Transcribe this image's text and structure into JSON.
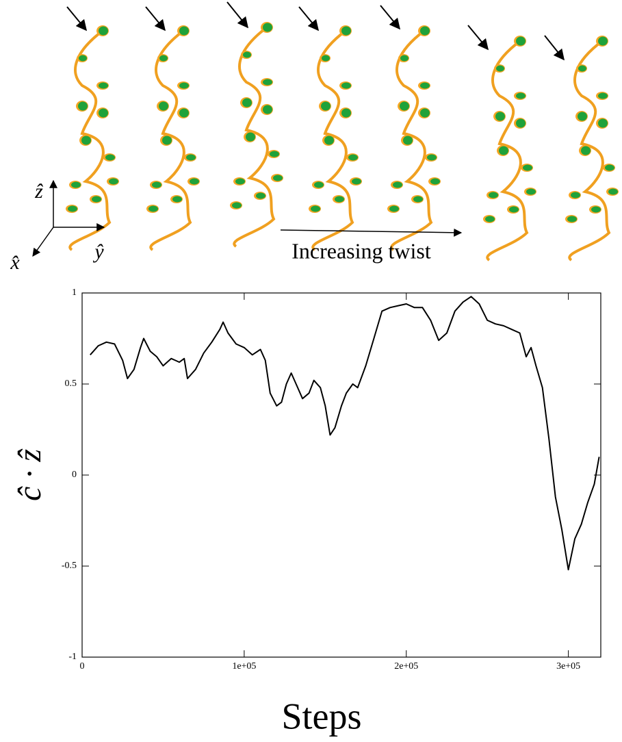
{
  "figure": {
    "axis_z": "ẑ",
    "axis_y": "ŷ",
    "axis_x": "x̂",
    "annotation": "Increasing twist"
  },
  "chart_data": {
    "type": "line",
    "xlabel": "Steps",
    "ylabel": "ĉ · ẑ",
    "color": "#000000",
    "x": [
      5000,
      10000,
      15000,
      20000,
      25000,
      28000,
      32000,
      36000,
      38000,
      42000,
      46000,
      50000,
      55000,
      60000,
      63000,
      65000,
      70000,
      75000,
      80000,
      85000,
      87000,
      90000,
      95000,
      100000,
      105000,
      110000,
      113000,
      116000,
      120000,
      123000,
      126000,
      129000,
      132000,
      136000,
      140000,
      143000,
      147000,
      150000,
      153000,
      156000,
      160000,
      163000,
      167000,
      170000,
      175000,
      180000,
      185000,
      190000,
      195000,
      200000,
      205000,
      210000,
      215000,
      220000,
      225000,
      230000,
      235000,
      240000,
      245000,
      250000,
      255000,
      260000,
      265000,
      270000,
      274000,
      277000,
      280000,
      284000,
      288000,
      292000,
      296000,
      300000,
      304000,
      308000,
      312000,
      316000,
      319000
    ],
    "values": [
      0.66,
      0.71,
      0.73,
      0.72,
      0.63,
      0.53,
      0.58,
      0.7,
      0.75,
      0.68,
      0.65,
      0.6,
      0.64,
      0.62,
      0.64,
      0.53,
      0.58,
      0.67,
      0.73,
      0.8,
      0.84,
      0.78,
      0.72,
      0.7,
      0.66,
      0.69,
      0.63,
      0.45,
      0.38,
      0.4,
      0.5,
      0.56,
      0.5,
      0.42,
      0.45,
      0.52,
      0.48,
      0.38,
      0.22,
      0.26,
      0.38,
      0.45,
      0.5,
      0.48,
      0.6,
      0.75,
      0.9,
      0.92,
      0.93,
      0.94,
      0.92,
      0.92,
      0.85,
      0.74,
      0.78,
      0.9,
      0.95,
      0.98,
      0.94,
      0.85,
      0.83,
      0.82,
      0.8,
      0.78,
      0.65,
      0.7,
      0.6,
      0.48,
      0.2,
      -0.12,
      -0.3,
      -0.52,
      -0.35,
      -0.27,
      -0.15,
      -0.05,
      0.1
    ],
    "xlim": [
      0,
      320000
    ],
    "xticks": [
      0,
      {
        "value": 100000,
        "label": "1e+05"
      },
      {
        "value": 200000,
        "label": "2e+05"
      },
      {
        "value": 300000,
        "label": "3e+05"
      }
    ],
    "ylim": [
      -1,
      1
    ],
    "yticks": [
      -1,
      -0.5,
      0,
      0.5,
      1
    ]
  }
}
